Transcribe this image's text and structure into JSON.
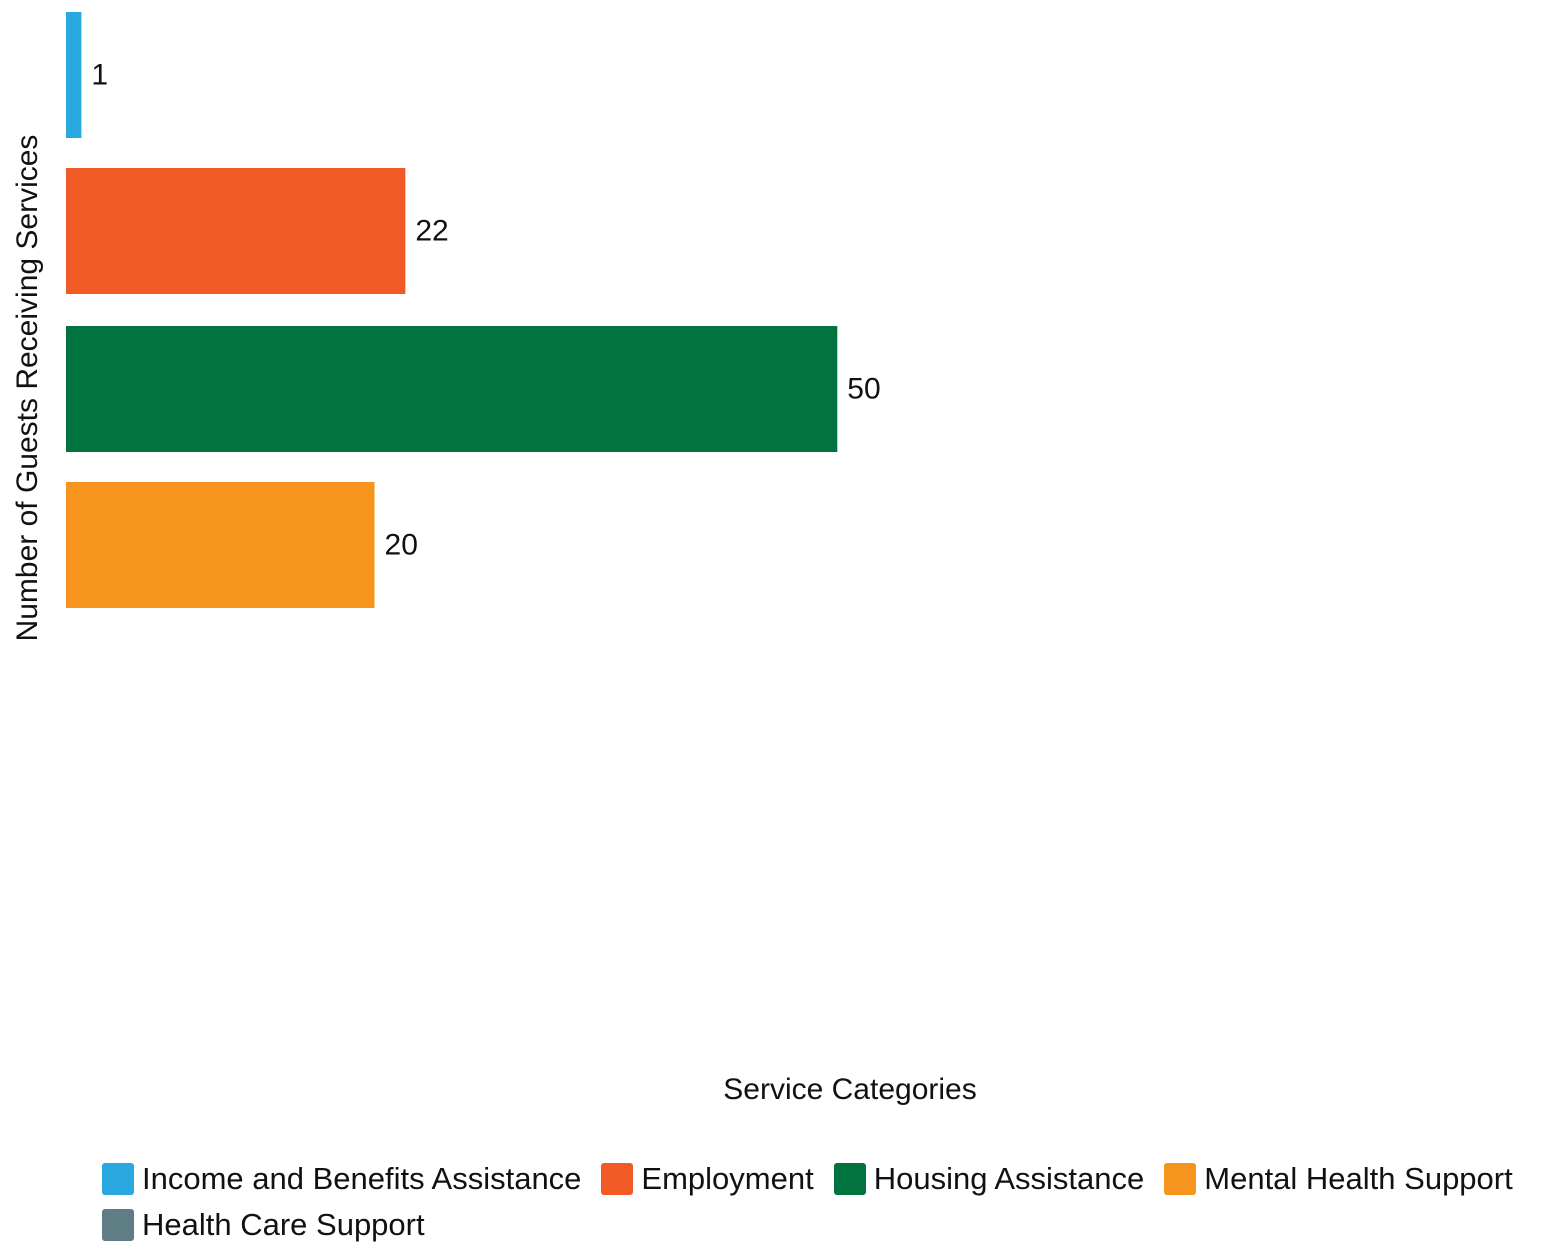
{
  "chart_data": {
    "type": "bar",
    "orientation": "horizontal",
    "categories": [
      "Income and Benefits Assistance",
      "Employment",
      "Housing Assistance",
      "Mental Health Support",
      "Health Care Support"
    ],
    "values": [
      1,
      22,
      50,
      20,
      null
    ],
    "data_labels": [
      "1",
      "22",
      "50",
      "20",
      ""
    ],
    "colors": [
      "#29a8e0",
      "#f05a24",
      "#00733f",
      "#f7941d",
      "#5e7e83"
    ],
    "xlabel": "Service Categories",
    "ylabel": "Number of Guests Receiving Services",
    "xlim": [
      0,
      96.2
    ],
    "grid": false,
    "legend_position": "bottom"
  }
}
